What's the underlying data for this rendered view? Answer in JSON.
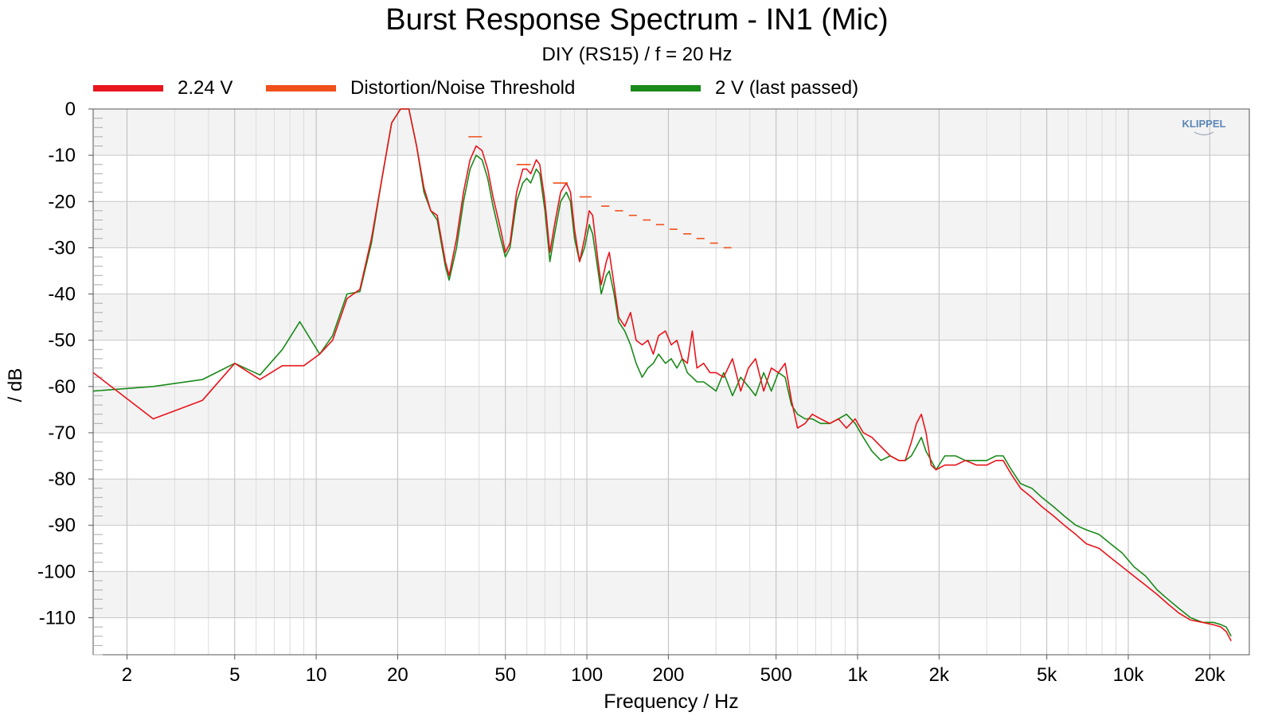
{
  "chart_data": {
    "type": "line",
    "title": "Burst Response Spectrum - IN1 (Mic)",
    "subtitle": "DIY (RS15) / f = 20 Hz",
    "xlabel": "Frequency / Hz",
    "ylabel": "/ dB",
    "xscale": "log",
    "xlim": [
      1.5,
      28000
    ],
    "ylim": [
      -118,
      0
    ],
    "grid": true,
    "legend_position": "top",
    "xticks": [
      {
        "value": 2,
        "label": "2"
      },
      {
        "value": 5,
        "label": "5"
      },
      {
        "value": 10,
        "label": "10"
      },
      {
        "value": 20,
        "label": "20"
      },
      {
        "value": 50,
        "label": "50"
      },
      {
        "value": 100,
        "label": "100"
      },
      {
        "value": 200,
        "label": "200"
      },
      {
        "value": 500,
        "label": "500"
      },
      {
        "value": 1000,
        "label": "1k"
      },
      {
        "value": 2000,
        "label": "2k"
      },
      {
        "value": 5000,
        "label": "5k"
      },
      {
        "value": 10000,
        "label": "10k"
      },
      {
        "value": 20000,
        "label": "20k"
      }
    ],
    "yticks": [
      {
        "value": 0,
        "label": "0"
      },
      {
        "value": -10,
        "label": "-10"
      },
      {
        "value": -20,
        "label": "-20"
      },
      {
        "value": -30,
        "label": "-30"
      },
      {
        "value": -40,
        "label": "-40"
      },
      {
        "value": -50,
        "label": "-50"
      },
      {
        "value": -60,
        "label": "-60"
      },
      {
        "value": -70,
        "label": "-70"
      },
      {
        "value": -80,
        "label": "-80"
      },
      {
        "value": -90,
        "label": "-90"
      },
      {
        "value": -100,
        "label": "-100"
      },
      {
        "value": -110,
        "label": "-110"
      }
    ],
    "watermark": "KLIPPEL",
    "series": [
      {
        "name": "2.24 V",
        "color": "#e8151c",
        "style": "line",
        "points": [
          [
            1.5,
            -57
          ],
          [
            2.5,
            -67
          ],
          [
            3.8,
            -63
          ],
          [
            5,
            -55
          ],
          [
            6.2,
            -58.5
          ],
          [
            7.5,
            -55.5
          ],
          [
            9,
            -55.5
          ],
          [
            10.3,
            -53
          ],
          [
            11.5,
            -50
          ],
          [
            13,
            -41
          ],
          [
            14.5,
            -39
          ],
          [
            16,
            -28
          ],
          [
            17.5,
            -15
          ],
          [
            19,
            -3
          ],
          [
            20.5,
            0
          ],
          [
            22,
            0
          ],
          [
            23.5,
            -8
          ],
          [
            25,
            -17
          ],
          [
            26.5,
            -22
          ],
          [
            28,
            -23
          ],
          [
            30,
            -33
          ],
          [
            31,
            -36
          ],
          [
            33,
            -28
          ],
          [
            35,
            -18
          ],
          [
            37,
            -11
          ],
          [
            39,
            -8
          ],
          [
            41,
            -9
          ],
          [
            43,
            -13
          ],
          [
            45,
            -19
          ],
          [
            48,
            -26
          ],
          [
            50,
            -31
          ],
          [
            52,
            -29
          ],
          [
            55,
            -18
          ],
          [
            58,
            -13
          ],
          [
            60,
            -13
          ],
          [
            62,
            -14
          ],
          [
            65,
            -11
          ],
          [
            67,
            -12
          ],
          [
            70,
            -20
          ],
          [
            73,
            -31
          ],
          [
            76,
            -25
          ],
          [
            80,
            -18
          ],
          [
            84,
            -16
          ],
          [
            87,
            -18
          ],
          [
            90,
            -26
          ],
          [
            94,
            -33
          ],
          [
            98,
            -28
          ],
          [
            102,
            -22
          ],
          [
            105,
            -23
          ],
          [
            110,
            -33
          ],
          [
            113,
            -38
          ],
          [
            118,
            -33
          ],
          [
            121,
            -31
          ],
          [
            126,
            -38
          ],
          [
            131,
            -45
          ],
          [
            138,
            -47
          ],
          [
            145,
            -44
          ],
          [
            152,
            -50
          ],
          [
            160,
            -51
          ],
          [
            168,
            -50
          ],
          [
            176,
            -53
          ],
          [
            184,
            -49
          ],
          [
            195,
            -48
          ],
          [
            205,
            -51
          ],
          [
            215,
            -50
          ],
          [
            225,
            -54
          ],
          [
            235,
            -55
          ],
          [
            245,
            -48
          ],
          [
            255,
            -56
          ],
          [
            270,
            -55
          ],
          [
            285,
            -57
          ],
          [
            300,
            -57
          ],
          [
            320,
            -58
          ],
          [
            345,
            -54
          ],
          [
            370,
            -61
          ],
          [
            395,
            -56
          ],
          [
            420,
            -54
          ],
          [
            450,
            -61
          ],
          [
            480,
            -56
          ],
          [
            510,
            -57
          ],
          [
            540,
            -55
          ],
          [
            570,
            -63
          ],
          [
            600,
            -69
          ],
          [
            640,
            -68
          ],
          [
            680,
            -66
          ],
          [
            730,
            -67
          ],
          [
            790,
            -68
          ],
          [
            850,
            -67
          ],
          [
            910,
            -69
          ],
          [
            980,
            -67
          ],
          [
            1050,
            -70
          ],
          [
            1130,
            -71
          ],
          [
            1220,
            -73
          ],
          [
            1320,
            -75
          ],
          [
            1420,
            -76
          ],
          [
            1500,
            -76
          ],
          [
            1580,
            -72
          ],
          [
            1650,
            -68
          ],
          [
            1720,
            -66
          ],
          [
            1790,
            -70
          ],
          [
            1870,
            -77
          ],
          [
            1950,
            -78
          ],
          [
            2100,
            -77
          ],
          [
            2300,
            -77
          ],
          [
            2500,
            -76
          ],
          [
            2750,
            -77
          ],
          [
            3000,
            -77
          ],
          [
            3250,
            -76
          ],
          [
            3450,
            -76
          ],
          [
            3700,
            -79
          ],
          [
            4000,
            -82
          ],
          [
            4400,
            -84
          ],
          [
            4800,
            -86
          ],
          [
            5300,
            -88
          ],
          [
            5800,
            -90
          ],
          [
            6400,
            -92
          ],
          [
            7000,
            -94
          ],
          [
            7800,
            -95
          ],
          [
            8600,
            -97
          ],
          [
            9500,
            -99
          ],
          [
            10500,
            -101
          ],
          [
            11600,
            -103
          ],
          [
            12800,
            -105
          ],
          [
            14000,
            -107
          ],
          [
            15400,
            -109
          ],
          [
            17000,
            -110.5
          ],
          [
            18800,
            -111
          ],
          [
            20600,
            -111.5
          ],
          [
            22000,
            -112
          ],
          [
            23000,
            -113
          ],
          [
            24000,
            -115
          ]
        ]
      },
      {
        "name": "Distortion/Noise Threshold",
        "color": "#f0501a",
        "style": "segments",
        "segments": [
          [
            36.5,
            41,
            -6
          ],
          [
            55,
            62,
            -12
          ],
          [
            75,
            85,
            -16
          ],
          [
            94,
            104,
            -19
          ],
          [
            113,
            121,
            -21
          ],
          [
            127,
            136,
            -22
          ],
          [
            143,
            153,
            -23
          ],
          [
            161,
            172,
            -24
          ],
          [
            180,
            193,
            -25
          ],
          [
            202,
            216,
            -26
          ],
          [
            227,
            243,
            -27
          ],
          [
            254,
            272,
            -28
          ],
          [
            285,
            305,
            -29
          ],
          [
            320,
            342,
            -30
          ]
        ]
      },
      {
        "name": "2 V (last passed)",
        "color": "#1a8a1a",
        "style": "line",
        "points": [
          [
            1.5,
            -61
          ],
          [
            2.5,
            -60
          ],
          [
            3.8,
            -58.5
          ],
          [
            5,
            -55
          ],
          [
            6.2,
            -57.5
          ],
          [
            7.5,
            -52
          ],
          [
            8.7,
            -46
          ],
          [
            10.3,
            -53
          ],
          [
            11.5,
            -49
          ],
          [
            13,
            -40
          ],
          [
            14.5,
            -39.5
          ],
          [
            16,
            -29
          ],
          [
            17.5,
            -15
          ],
          [
            19,
            -3
          ],
          [
            20.5,
            0
          ],
          [
            22,
            0
          ],
          [
            23.5,
            -8
          ],
          [
            25,
            -18
          ],
          [
            26.5,
            -22
          ],
          [
            28,
            -24
          ],
          [
            30,
            -34
          ],
          [
            31,
            -37
          ],
          [
            33,
            -30
          ],
          [
            35,
            -20
          ],
          [
            37,
            -13
          ],
          [
            39,
            -10
          ],
          [
            41,
            -11
          ],
          [
            43,
            -15
          ],
          [
            45,
            -21
          ],
          [
            48,
            -28
          ],
          [
            50,
            -32
          ],
          [
            52,
            -30
          ],
          [
            55,
            -20
          ],
          [
            58,
            -16
          ],
          [
            60,
            -15
          ],
          [
            62,
            -16
          ],
          [
            65,
            -13
          ],
          [
            67,
            -14
          ],
          [
            70,
            -22
          ],
          [
            73,
            -33
          ],
          [
            76,
            -27
          ],
          [
            80,
            -20
          ],
          [
            84,
            -18
          ],
          [
            87,
            -20
          ],
          [
            90,
            -28
          ],
          [
            94,
            -33
          ],
          [
            98,
            -30
          ],
          [
            102,
            -25
          ],
          [
            105,
            -27
          ],
          [
            110,
            -35
          ],
          [
            113,
            -40
          ],
          [
            118,
            -36
          ],
          [
            121,
            -35
          ],
          [
            126,
            -40
          ],
          [
            131,
            -46
          ],
          [
            138,
            -48
          ],
          [
            145,
            -51
          ],
          [
            152,
            -55
          ],
          [
            160,
            -58
          ],
          [
            168,
            -56
          ],
          [
            176,
            -55
          ],
          [
            184,
            -53
          ],
          [
            195,
            -55
          ],
          [
            205,
            -54
          ],
          [
            215,
            -56
          ],
          [
            225,
            -54
          ],
          [
            235,
            -57
          ],
          [
            245,
            -58
          ],
          [
            255,
            -59
          ],
          [
            270,
            -59
          ],
          [
            285,
            -60
          ],
          [
            300,
            -61
          ],
          [
            320,
            -57
          ],
          [
            345,
            -62
          ],
          [
            370,
            -58
          ],
          [
            395,
            -60
          ],
          [
            420,
            -62
          ],
          [
            450,
            -57
          ],
          [
            480,
            -61
          ],
          [
            510,
            -57
          ],
          [
            540,
            -58
          ],
          [
            570,
            -64
          ],
          [
            600,
            -66
          ],
          [
            640,
            -67
          ],
          [
            680,
            -67
          ],
          [
            730,
            -68
          ],
          [
            790,
            -68
          ],
          [
            850,
            -67
          ],
          [
            910,
            -66
          ],
          [
            980,
            -68
          ],
          [
            1050,
            -71
          ],
          [
            1130,
            -74
          ],
          [
            1220,
            -76
          ],
          [
            1320,
            -75
          ],
          [
            1420,
            -76
          ],
          [
            1500,
            -76
          ],
          [
            1580,
            -75
          ],
          [
            1650,
            -73
          ],
          [
            1720,
            -71
          ],
          [
            1790,
            -74
          ],
          [
            1870,
            -76
          ],
          [
            1950,
            -78
          ],
          [
            2100,
            -75
          ],
          [
            2300,
            -75
          ],
          [
            2500,
            -76
          ],
          [
            2750,
            -76
          ],
          [
            3000,
            -76
          ],
          [
            3250,
            -75
          ],
          [
            3450,
            -75
          ],
          [
            3700,
            -78
          ],
          [
            4000,
            -81
          ],
          [
            4400,
            -82
          ],
          [
            4800,
            -84
          ],
          [
            5300,
            -86
          ],
          [
            5800,
            -88
          ],
          [
            6400,
            -90
          ],
          [
            7000,
            -91
          ],
          [
            7800,
            -92
          ],
          [
            8600,
            -94
          ],
          [
            9500,
            -96
          ],
          [
            10500,
            -99
          ],
          [
            11600,
            -101
          ],
          [
            12800,
            -104
          ],
          [
            14000,
            -106
          ],
          [
            15400,
            -108
          ],
          [
            17000,
            -110
          ],
          [
            18800,
            -111
          ],
          [
            20600,
            -111
          ],
          [
            22000,
            -111.5
          ],
          [
            23000,
            -112
          ],
          [
            24000,
            -114
          ]
        ]
      }
    ]
  }
}
